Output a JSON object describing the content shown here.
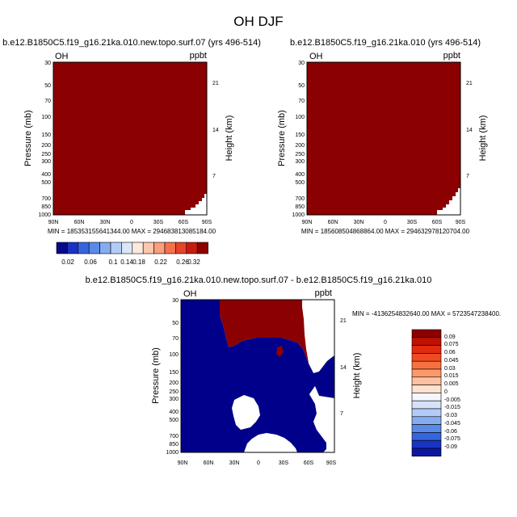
{
  "figure_title": "OH DJF",
  "chart_data": [
    {
      "type": "heatmap",
      "title": "b.e12.B1850C5.f19_g16.21ka.010.new.topo.surf.07 (yrs 496-514)",
      "left_label": "OH",
      "right_label": "ppbt",
      "xlabel": "",
      "ylabel": "Pressure (mb)",
      "ylabel_right": "Height (km)",
      "y_scale": "log",
      "ylim": [
        1000,
        30
      ],
      "yticks": [
        "30",
        "50",
        "70",
        "100",
        "150",
        "200",
        "250",
        "300",
        "400",
        "500",
        "700",
        "850",
        "1000"
      ],
      "right_ticks": [
        "21",
        "14",
        "7"
      ],
      "xticks": [
        "90N",
        "60N",
        "30N",
        "0",
        "30S",
        "60S",
        "90S"
      ],
      "field": "all values above colorbar maximum (dark red) except topography near 90S surface",
      "stats": "MIN = 185353155641344.00   MAX = 294683813085184.00"
    },
    {
      "type": "heatmap",
      "title": "b.e12.B1850C5.f19_g16.21ka.010 (yrs 496-514)",
      "left_label": "OH",
      "right_label": "ppbt",
      "xlabel": "",
      "ylabel": "Pressure (mb)",
      "ylabel_right": "Height (km)",
      "y_scale": "log",
      "ylim": [
        1000,
        30
      ],
      "yticks": [
        "30",
        "50",
        "70",
        "100",
        "150",
        "200",
        "250",
        "300",
        "400",
        "500",
        "700",
        "850",
        "1000"
      ],
      "right_ticks": [
        "21",
        "14",
        "7"
      ],
      "xticks": [
        "90N",
        "60N",
        "30N",
        "0",
        "30S",
        "60S",
        "90S"
      ],
      "field": "all values above colorbar maximum (dark red) except topography near 90S surface",
      "stats": "MIN = 185608504868864.00   MAX = 294632978120704.00"
    },
    {
      "type": "heatmap",
      "title": "b.e12.B1850C5.f19_g16.21ka.010.new.topo.surf.07 - b.e12.B1850C5.f19_g16.21ka.010",
      "left_label": "OH",
      "right_label": "ppbt",
      "xlabel": "",
      "ylabel": "Pressure (mb)",
      "ylabel_right": "Height (km)",
      "y_scale": "log",
      "ylim": [
        1000,
        30
      ],
      "yticks": [
        "30",
        "50",
        "70",
        "100",
        "150",
        "200",
        "250",
        "300",
        "400",
        "500",
        "700",
        "850",
        "1000"
      ],
      "right_ticks": [
        "21",
        "14",
        "7"
      ],
      "xticks": [
        "90N",
        "60N",
        "30N",
        "0",
        "30S",
        "60S",
        "90S"
      ],
      "field": "difference field: dark blue (below -0.09) over most of northern hemisphere and lower troposphere, dark red (above 0.09) in upper levels from 30N to 90S, white (near zero) patches",
      "stats": "MIN = -4136254832640.00   MAX = 5723547238400."
    }
  ],
  "colorbar_top": {
    "labels": [
      "0.02",
      "0.06",
      "0.1",
      "0.14",
      "0.18",
      "0.22",
      "0.26",
      "0.32"
    ],
    "colors": [
      "#08088a",
      "#1a33c2",
      "#3565dc",
      "#5a8ae8",
      "#86acf0",
      "#b3ccf7",
      "#dbe6fb",
      "#fde9de",
      "#fcc7ad",
      "#fb9e7c",
      "#f5714e",
      "#e54429",
      "#c61c0e",
      "#8c0000"
    ]
  },
  "colorbar_diff": {
    "labels": [
      "0.09",
      "0.075",
      "0.06",
      "0.045",
      "0.03",
      "0.015",
      "0.005",
      "0",
      "-0.005",
      "-0.015",
      "-0.03",
      "-0.045",
      "-0.06",
      "-0.075",
      "-0.09"
    ],
    "colors": [
      "#8c0000",
      "#c01000",
      "#e22a10",
      "#f14a22",
      "#f7713f",
      "#fa9a6a",
      "#fcc1a0",
      "#fde2d0",
      "#f4f6fc",
      "#d6e2fa",
      "#b3ccf7",
      "#86acf0",
      "#5a8ae8",
      "#3565dc",
      "#1a33c2",
      "#0c189f"
    ]
  },
  "colors": {
    "high": "#8b0000",
    "low": "#00008b",
    "missing": "#ffffff"
  }
}
